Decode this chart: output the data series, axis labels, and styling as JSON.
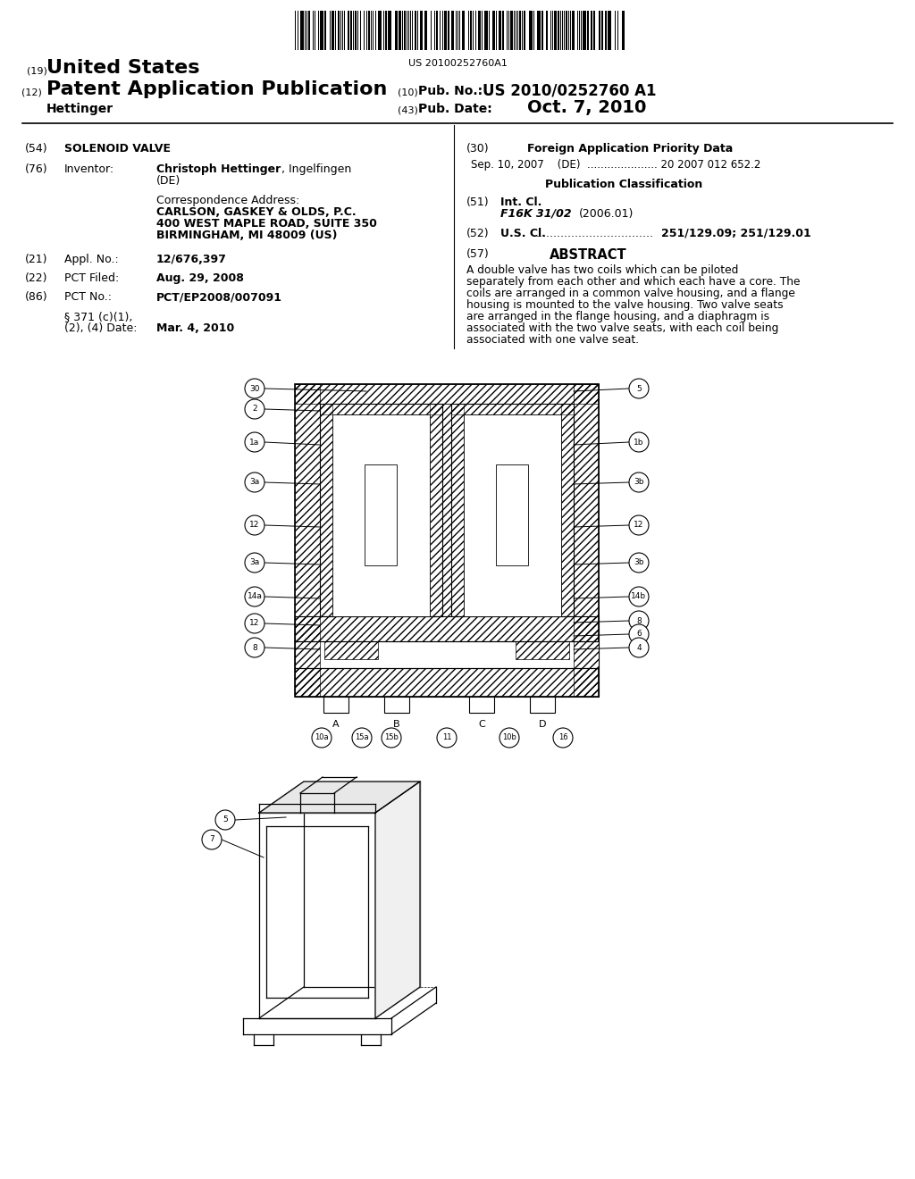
{
  "background_color": "#ffffff",
  "barcode_text": "US 20100252760A1",
  "patent_number": "US 2010/0252760 A1",
  "pub_date": "Oct. 7, 2010",
  "title_19_num": "(19)",
  "title_19_text": "United States",
  "title_12_num": "(12)",
  "title_12_text": "Patent Application Publication",
  "title_10_num": "(10)",
  "title_10_label": "Pub. No.:",
  "title_43_num": "(43)",
  "title_43_label": "Pub. Date:",
  "applicant_name": "Hettinger",
  "field_54_num": "(54)",
  "field_54_text": "SOLENOID VALVE",
  "field_76_num": "(76)",
  "field_76_label": "Inventor:",
  "field_76_name_bold": "Christoph Hettinger",
  "field_76_name_rest": ", Ingelfingen",
  "field_76_loc": "(DE)",
  "corr_label": "Correspondence Address:",
  "corr_line1": "CARLSON, GASKEY & OLDS, P.C.",
  "corr_line2": "400 WEST MAPLE ROAD, SUITE 350",
  "corr_line3": "BIRMINGHAM, MI 48009 (US)",
  "field_21_num": "(21)",
  "field_21_label": "Appl. No.:",
  "field_21_value": "12/676,397",
  "field_22_num": "(22)",
  "field_22_label": "PCT Filed:",
  "field_22_value": "Aug. 29, 2008",
  "field_86_num": "(86)",
  "field_86_label": "PCT No.:",
  "field_86_value": "PCT/EP2008/007091",
  "field_371_line1": "§ 371 (c)(1),",
  "field_371_line2": "(2), (4) Date:",
  "field_371_value": "Mar. 4, 2010",
  "field_30_num": "(30)",
  "field_30_title": "Foreign Application Priority Data",
  "priority_line": "Sep. 10, 2007    (DE)  ..................... 20 2007 012 652.2",
  "pub_class_title": "Publication Classification",
  "field_51_num": "(51)",
  "field_51_label": "Int. Cl.",
  "field_51_class": "F16K 31/02",
  "field_51_year": "(2006.01)",
  "field_52_num": "(52)",
  "field_52_label": "U.S. Cl.",
  "field_52_dots": ".................................",
  "field_52_value": "251/129.09",
  "field_52_value2": "251/129.01",
  "field_57_num": "(57)",
  "field_57_title": "ABSTRACT",
  "abstract_text": "A double valve has two coils which can be piloted separately from each other and which each have a core. The coils are arranged in a common valve housing, and a flange housing is mounted to the valve housing. Two valve seats are arranged in the flange housing, and a diaphragm is associated with the two valve seats, with each coil being associated with one valve seat.",
  "fig1_left_labels": [
    "30",
    "2",
    "1a",
    "3a",
    "12",
    "3a",
    "14a",
    "12",
    "8"
  ],
  "fig1_right_labels": [
    "5",
    "1b",
    "3b",
    "12",
    "3b",
    "14b",
    "8",
    "6",
    "4"
  ],
  "fig1_bottom_labels": [
    "10a",
    "15a",
    "15b",
    "11",
    "10b",
    "16"
  ],
  "fig1_port_labels": [
    "A",
    "B",
    "C",
    "D"
  ],
  "fig2_labels": [
    "5",
    "7"
  ]
}
